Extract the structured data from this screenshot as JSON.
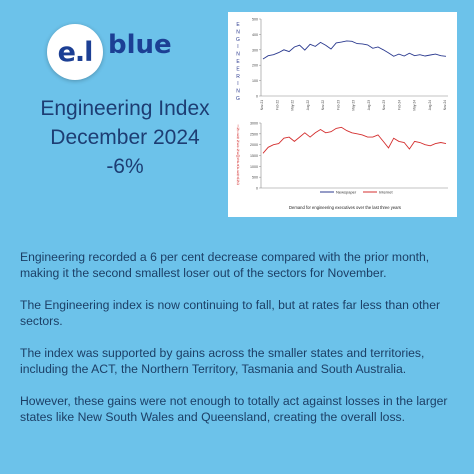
{
  "brand": {
    "mark": "e.l",
    "name": "blue",
    "color": "#1c3f94"
  },
  "headline": {
    "line1": "Engineering Index",
    "line2": "December 2024",
    "line3": "-6%"
  },
  "chart_data": [
    {
      "type": "line",
      "ylabel": "ENGINEERING",
      "ylim": [
        0,
        500
      ],
      "yticks": [
        "500",
        "400",
        "300",
        "200",
        "100",
        "0"
      ],
      "x_tick_labels": [
        "Nov-21",
        "Feb-22",
        "May-22",
        "Aug-22",
        "Nov-22",
        "Feb-23",
        "May-23",
        "Aug-23",
        "Nov-23",
        "Feb-24",
        "May-24",
        "Aug-24",
        "Nov-24"
      ],
      "series": [
        {
          "name": "Newspaper",
          "color": "#2b3a8f",
          "values": [
            240,
            262,
            268,
            282,
            300,
            288,
            318,
            330,
            298,
            336,
            322,
            348,
            330,
            305,
            345,
            350,
            358,
            355,
            340,
            338,
            332,
            310,
            318,
            300,
            280,
            258,
            272,
            260,
            278,
            262,
            268,
            260,
            266,
            272,
            262,
            258
          ]
        }
      ]
    },
    {
      "type": "line",
      "ylabel": "INTERNET NEWSPAPER AND",
      "ylim": [
        0,
        3000
      ],
      "yticks": [
        "3000",
        "2500",
        "2000",
        "1500",
        "1000",
        "500",
        "0"
      ],
      "series": [
        {
          "name": "Internet",
          "color": "#d42f2f",
          "values": [
            1600,
            1880,
            2000,
            2050,
            2300,
            2350,
            2150,
            2350,
            2550,
            2350,
            2550,
            2700,
            2550,
            2600,
            2750,
            2800,
            2650,
            2550,
            2500,
            2450,
            2350,
            2350,
            2450,
            2150,
            1850,
            2300,
            2150,
            2100,
            1800,
            2150,
            2100,
            2000,
            1950,
            2050,
            2100,
            2050
          ]
        }
      ],
      "legend": [
        "Newspaper",
        "Internet"
      ],
      "caption": "Demand for engineering executives over the last three years"
    }
  ],
  "paragraphs": [
    "Engineering recorded a 6 per cent decrease compared with the prior month, making it the second smallest loser out of the sectors for November.",
    "The Engineering index is now continuing to fall, but at rates far less than other sectors.",
    "The index was supported by gains across the smaller states and territories, including the ACT, the Northern Territory, Tasmania and South Australia.",
    "However, these gains were not enough to totally act against losses in the larger states like New South Wales and Queensland, creating the overall loss."
  ],
  "colors": {
    "background": "#6cc2ea",
    "headline": "#1d3d73",
    "body_text": "#1c3f66"
  }
}
